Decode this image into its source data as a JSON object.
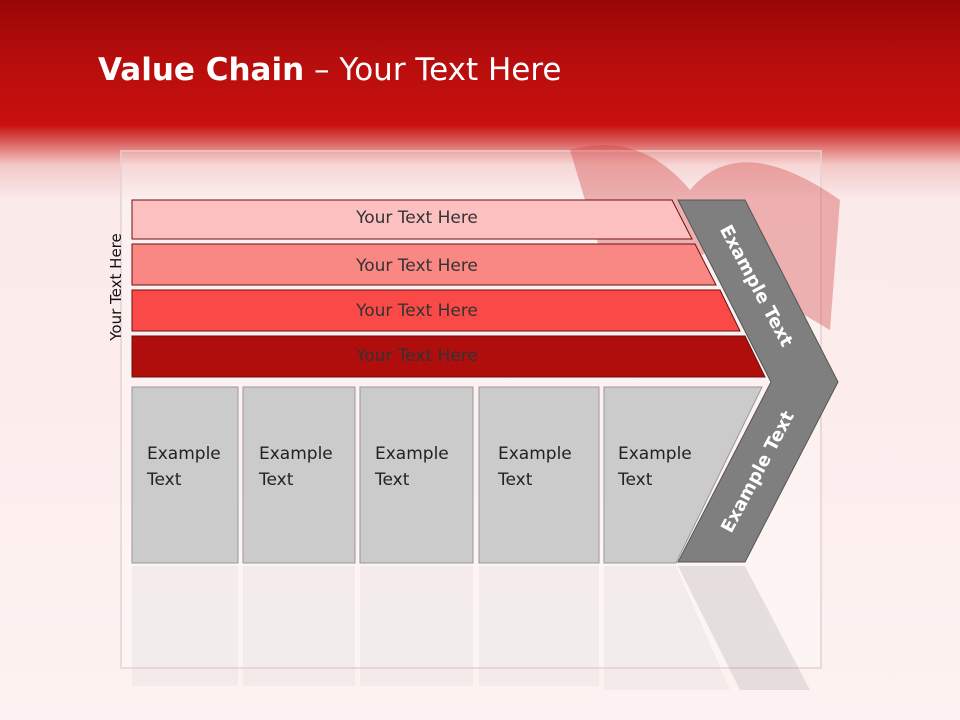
{
  "title": {
    "bold": "Value Chain",
    "rest": " – Your Text Here"
  },
  "side_label": "Your Text Here",
  "bars": [
    {
      "label": "Your Text Here",
      "color": "#fdc0c0"
    },
    {
      "label": "Your Text Here",
      "color": "#f98783"
    },
    {
      "label": "Your Text Here",
      "color": "#f94a47"
    },
    {
      "label": "Your Text Here",
      "color": "#b00d0d"
    }
  ],
  "boxes": [
    {
      "line1": "Example",
      "line2": "Text"
    },
    {
      "line1": "Example",
      "line2": "Text"
    },
    {
      "line1": "Example",
      "line2": "Text"
    },
    {
      "line1": "Example",
      "line2": "Text"
    },
    {
      "line1": "Example",
      "line2": "Text"
    }
  ],
  "chevron": {
    "upper": "Example Text",
    "lower": "Example Text",
    "color": "#7f7f7f"
  },
  "colors": {
    "box": "#cbcbcb",
    "header": "#c00f0e"
  }
}
